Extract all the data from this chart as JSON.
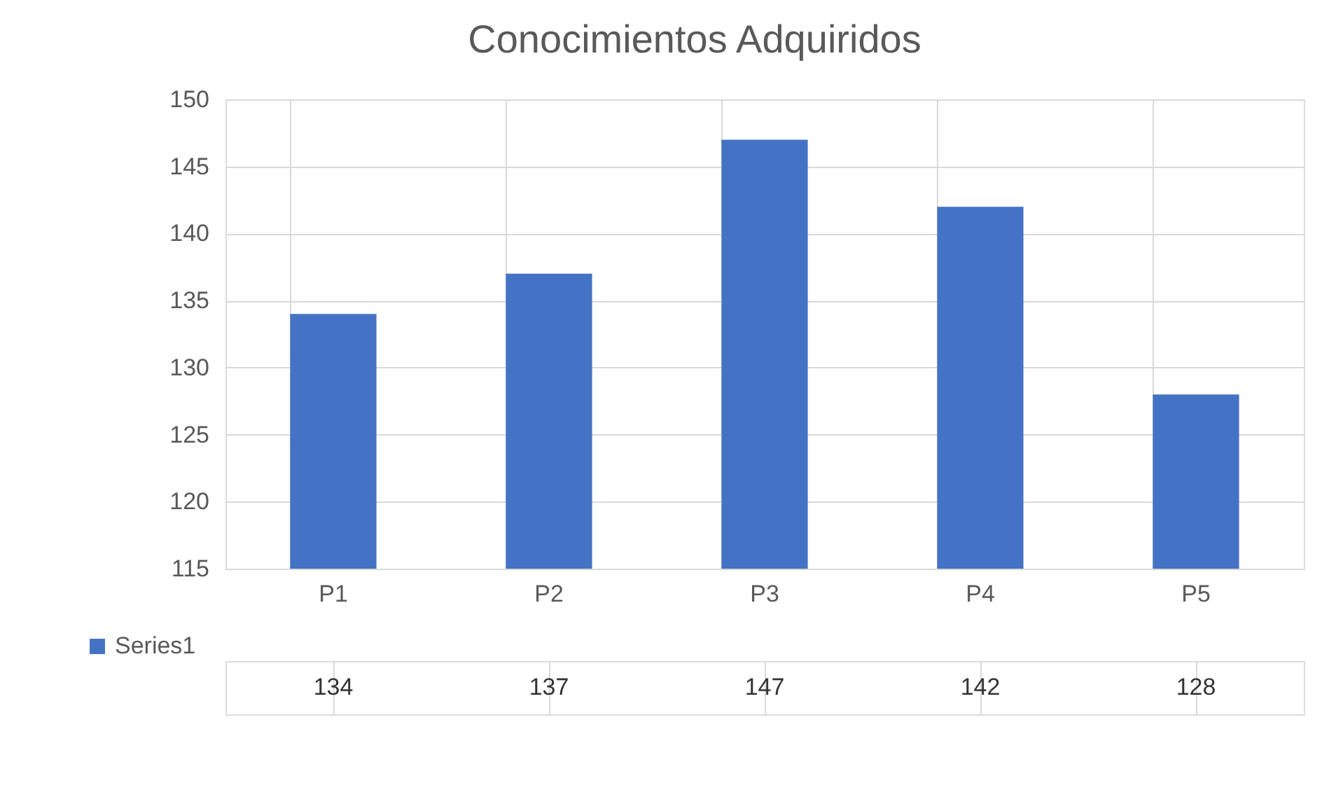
{
  "chart_data": {
    "type": "bar",
    "title": "Conocimientos Adquiridos",
    "categories": [
      "P1",
      "P2",
      "P3",
      "P4",
      "P5"
    ],
    "series": [
      {
        "name": "Series1",
        "color": "#4472c4",
        "values": [
          134,
          137,
          147,
          142,
          128
        ]
      }
    ],
    "ylim": [
      115,
      150
    ],
    "yticks": [
      115,
      120,
      125,
      130,
      135,
      140,
      145,
      150
    ],
    "grid": "y",
    "legend": "bottom left",
    "data_labels": true
  }
}
